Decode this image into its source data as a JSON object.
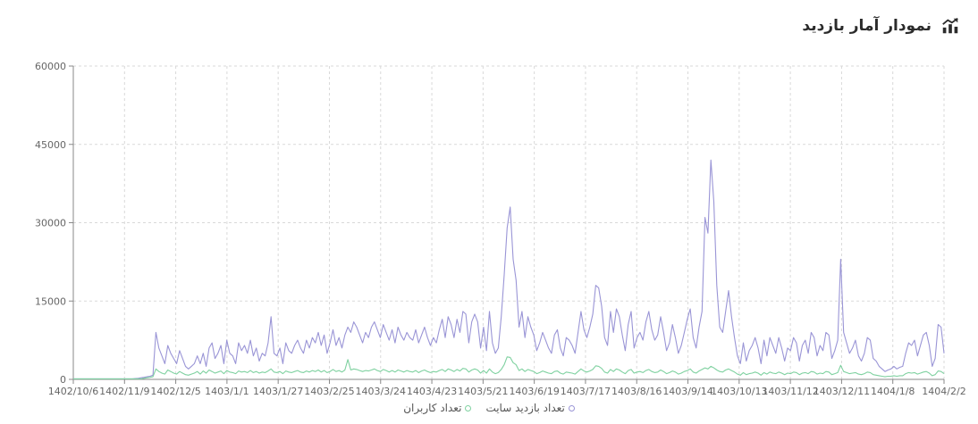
{
  "header": {
    "title": "نمودار آمار بازدید",
    "icon": "trend-chart-icon"
  },
  "colors": {
    "visits": "#9a95d6",
    "users": "#7fd1a0",
    "grid": "#d9d9d9",
    "axis": "#888888"
  },
  "chart_data": {
    "type": "line",
    "title": "نمودار آمار بازدید",
    "ylim": [
      0,
      60000
    ],
    "yticks": [
      "0",
      "15000",
      "30000",
      "45000",
      "60000"
    ],
    "ytick_values": [
      0,
      15000,
      30000,
      45000,
      60000
    ],
    "xtick_labels": [
      "1402/10/6",
      "1402/11/9",
      "1402/12/5",
      "1403/1/1",
      "1403/1/27",
      "1403/2/25",
      "1403/3/24",
      "1403/4/23",
      "1403/5/21",
      "1403/6/19",
      "1403/7/17",
      "1403/8/16",
      "1403/9/14",
      "1403/10/13",
      "1403/11/12",
      "1403/12/11",
      "1404/1/8",
      "1404/2/2"
    ],
    "grid": true,
    "legend": "bottom-center",
    "series": [
      {
        "name": "تعداد بازدید سایت",
        "key": "visits",
        "values": [
          100,
          100,
          100,
          100,
          100,
          100,
          100,
          100,
          100,
          100,
          100,
          100,
          100,
          100,
          100,
          100,
          100,
          100,
          100,
          100,
          100,
          150,
          200,
          300,
          400,
          500,
          600,
          800,
          9000,
          6000,
          4500,
          3000,
          6500,
          5000,
          4000,
          3000,
          5500,
          4000,
          2500,
          2000,
          2500,
          3000,
          4500,
          3000,
          5000,
          2500,
          6000,
          7000,
          4000,
          5000,
          6500,
          3000,
          7500,
          5000,
          4500,
          3000,
          7000,
          5500,
          6500,
          5000,
          7500,
          4500,
          6000,
          3500,
          5000,
          4500,
          7000,
          12000,
          5000,
          4500,
          6000,
          3000,
          7000,
          5500,
          5000,
          6500,
          7500,
          6000,
          5000,
          7500,
          6000,
          8000,
          7000,
          9000,
          6500,
          8500,
          5000,
          7000,
          9500,
          6500,
          8000,
          6000,
          8500,
          10000,
          9000,
          11000,
          10000,
          8500,
          7000,
          9000,
          8000,
          10000,
          11000,
          9500,
          8000,
          10500,
          9000,
          7500,
          9500,
          7000,
          10000,
          8500,
          7500,
          9000,
          8000,
          7500,
          9500,
          7000,
          8500,
          10000,
          8000,
          6500,
          8000,
          7000,
          9500,
          11500,
          8000,
          12000,
          10500,
          8000,
          11500,
          9000,
          13000,
          12500,
          7000,
          11000,
          12500,
          11000,
          6000,
          10000,
          5500,
          13000,
          7000,
          5000,
          6000,
          12000,
          20000,
          29000,
          33000,
          23000,
          19000,
          10000,
          13000,
          8000,
          12000,
          10000,
          8500,
          5500,
          7000,
          9000,
          7500,
          6000,
          5000,
          8500,
          9500,
          6000,
          4500,
          8000,
          7500,
          6500,
          5000,
          9000,
          13000,
          9500,
          8000,
          10000,
          12500,
          18000,
          17500,
          14000,
          8000,
          6500,
          13000,
          9000,
          13500,
          12000,
          8500,
          5500,
          10500,
          13000,
          6000,
          8000,
          9000,
          7500,
          11000,
          13000,
          9500,
          7500,
          8500,
          12000,
          9000,
          5500,
          7000,
          10500,
          8000,
          5000,
          6500,
          9000,
          11500,
          13500,
          8000,
          6000,
          10000,
          13000,
          31000,
          28000,
          42000,
          34000,
          18000,
          10000,
          9000,
          13000,
          17000,
          12000,
          8000,
          4500,
          3000,
          7000,
          3500,
          5500,
          6500,
          8000,
          6000,
          3000,
          7500,
          4500,
          8000,
          6500,
          5000,
          8000,
          6000,
          3500,
          6000,
          5500,
          8000,
          7000,
          3500,
          6500,
          7500,
          5000,
          9000,
          8000,
          4500,
          6500,
          5500,
          9000,
          8500,
          4000,
          5500,
          7500,
          23000,
          9000,
          7000,
          5000,
          6000,
          7500,
          4500,
          3500,
          5000,
          8000,
          7500,
          4000,
          3500,
          2500,
          2000,
          1500,
          1800,
          2000,
          2500,
          2000,
          2300,
          2500,
          5000,
          7000,
          6500,
          7500,
          4500,
          6500,
          8500,
          9000,
          6500,
          2500,
          4000,
          10500,
          10000,
          5000
        ]
      },
      {
        "name": "تعداد کاربران",
        "key": "users",
        "values": [
          100,
          100,
          100,
          100,
          100,
          100,
          100,
          100,
          100,
          100,
          100,
          100,
          100,
          100,
          100,
          100,
          100,
          100,
          100,
          100,
          100,
          100,
          100,
          100,
          200,
          300,
          400,
          500,
          2000,
          1500,
          1200,
          1000,
          1800,
          1500,
          1200,
          1000,
          1500,
          1200,
          900,
          800,
          1000,
          1200,
          1500,
          1000,
          1600,
          1200,
          1800,
          1500,
          1200,
          1400,
          1600,
          1100,
          1700,
          1400,
          1300,
          1100,
          1600,
          1400,
          1500,
          1300,
          1700,
          1300,
          1500,
          1200,
          1400,
          1300,
          1600,
          2000,
          1400,
          1300,
          1500,
          1100,
          1600,
          1400,
          1300,
          1500,
          1700,
          1400,
          1300,
          1600,
          1400,
          1700,
          1500,
          1800,
          1400,
          1700,
          1300,
          1500,
          1900,
          1500,
          1700,
          1400,
          1800,
          3800,
          1800,
          2000,
          1900,
          1700,
          1500,
          1700,
          1600,
          1800,
          2000,
          1700,
          1500,
          1900,
          1700,
          1400,
          1700,
          1400,
          1800,
          1600,
          1400,
          1700,
          1500,
          1400,
          1700,
          1300,
          1600,
          1800,
          1500,
          1300,
          1500,
          1400,
          1700,
          1900,
          1500,
          2000,
          1800,
          1500,
          1900,
          1600,
          2100,
          2000,
          1400,
          1800,
          2000,
          1800,
          1200,
          1700,
          1200,
          2000,
          1400,
          1100,
          1300,
          1900,
          2800,
          4300,
          4200,
          3200,
          2800,
          1700,
          2000,
          1500,
          1900,
          1700,
          1500,
          1100,
          1300,
          1600,
          1400,
          1200,
          1100,
          1500,
          1600,
          1200,
          1000,
          1400,
          1300,
          1200,
          1000,
          1500,
          2000,
          1600,
          1400,
          1600,
          1900,
          2600,
          2500,
          2100,
          1400,
          1200,
          1900,
          1500,
          2000,
          1800,
          1400,
          1100,
          1700,
          1900,
          1200,
          1400,
          1500,
          1300,
          1700,
          1900,
          1500,
          1300,
          1400,
          1800,
          1500,
          1100,
          1300,
          1600,
          1400,
          1000,
          1200,
          1500,
          1700,
          2000,
          1400,
          1200,
          1600,
          1900,
          2200,
          2000,
          2500,
          2200,
          1800,
          1500,
          1400,
          1800,
          2000,
          1700,
          1400,
          1000,
          800,
          1300,
          900,
          1100,
          1200,
          1400,
          1200,
          800,
          1300,
          1000,
          1400,
          1200,
          1100,
          1400,
          1200,
          900,
          1200,
          1100,
          1400,
          1300,
          900,
          1200,
          1300,
          1100,
          1500,
          1400,
          1000,
          1200,
          1100,
          1500,
          1400,
          900,
          1100,
          1300,
          2700,
          1500,
          1300,
          1100,
          1200,
          1300,
          1000,
          900,
          1100,
          1400,
          1300,
          900,
          800,
          700,
          600,
          500,
          600,
          600,
          700,
          600,
          700,
          700,
          1100,
          1300,
          1200,
          1300,
          1000,
          1200,
          1400,
          1500,
          1200,
          700,
          900,
          1600,
          1500,
          1100
        ]
      }
    ]
  },
  "legend_items": [
    {
      "label": "تعداد بازدید سایت",
      "key": "visits"
    },
    {
      "label": "تعداد کاربران",
      "key": "users"
    }
  ]
}
